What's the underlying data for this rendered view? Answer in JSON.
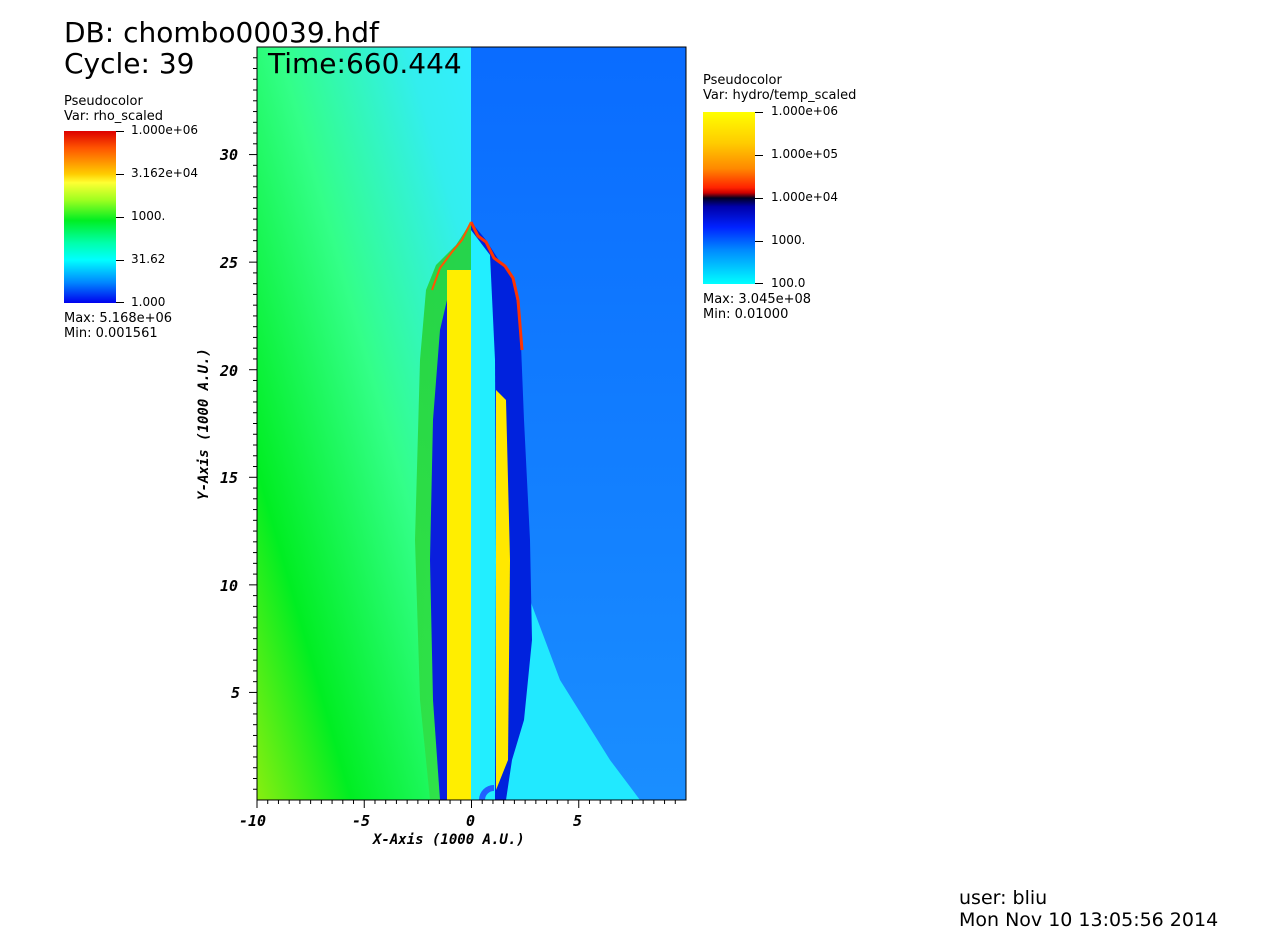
{
  "header": {
    "db": "DB: chombo00039.hdf",
    "cycle": "Cycle: 39",
    "time": "Time:660.444"
  },
  "legend_left": {
    "heading": "Pseudocolor",
    "var": "Var: rho_scaled",
    "ticks": [
      "1.000e+06",
      "3.162e+04",
      "1000.",
      "31.62",
      "1.000"
    ],
    "max": "Max:  5.168e+06",
    "min": "Min:  0.001561"
  },
  "legend_right": {
    "heading": "Pseudocolor",
    "var": "Var: hydro/temp_scaled",
    "ticks": [
      "1.000e+06",
      "1.000e+05",
      "1.000e+04",
      "1000.",
      "100.0"
    ],
    "max": "Max:  3.045e+08",
    "min": "Min:  0.01000"
  },
  "footer": {
    "user": "user: bliu",
    "timestamp": "Mon Nov 10 13:05:56 2014"
  },
  "colors": {
    "left_background_green": "#22ee33",
    "left_background_cyan": "#33eeff",
    "right_background_blue": "#1177ff",
    "jet_core_yellow": "#ffee00",
    "shell_dark_blue": "#0022dd",
    "tip_red": "#ff3300"
  },
  "chart_data": {
    "type": "heatmap",
    "title": "",
    "xlabel": "X-Axis (1000 A.U.)",
    "ylabel": "Y-Axis (1000 A.U.)",
    "xlim": [
      -10,
      10
    ],
    "ylim": [
      0,
      35
    ],
    "x_ticks": [
      -10,
      -5,
      0,
      5
    ],
    "y_ticks": [
      5,
      10,
      15,
      20,
      25,
      30
    ],
    "x_tick_labels": [
      "-10",
      "-5",
      "0",
      "5"
    ],
    "y_tick_labels": [
      "5",
      "10",
      "15",
      "20",
      "25",
      "30"
    ],
    "panels": [
      {
        "field": "rho_scaled",
        "side": "left",
        "x_range": [
          -10,
          0
        ]
      },
      {
        "field": "hydro/temp_scaled",
        "side": "right",
        "x_range": [
          0,
          10
        ]
      }
    ],
    "grid": false
  }
}
